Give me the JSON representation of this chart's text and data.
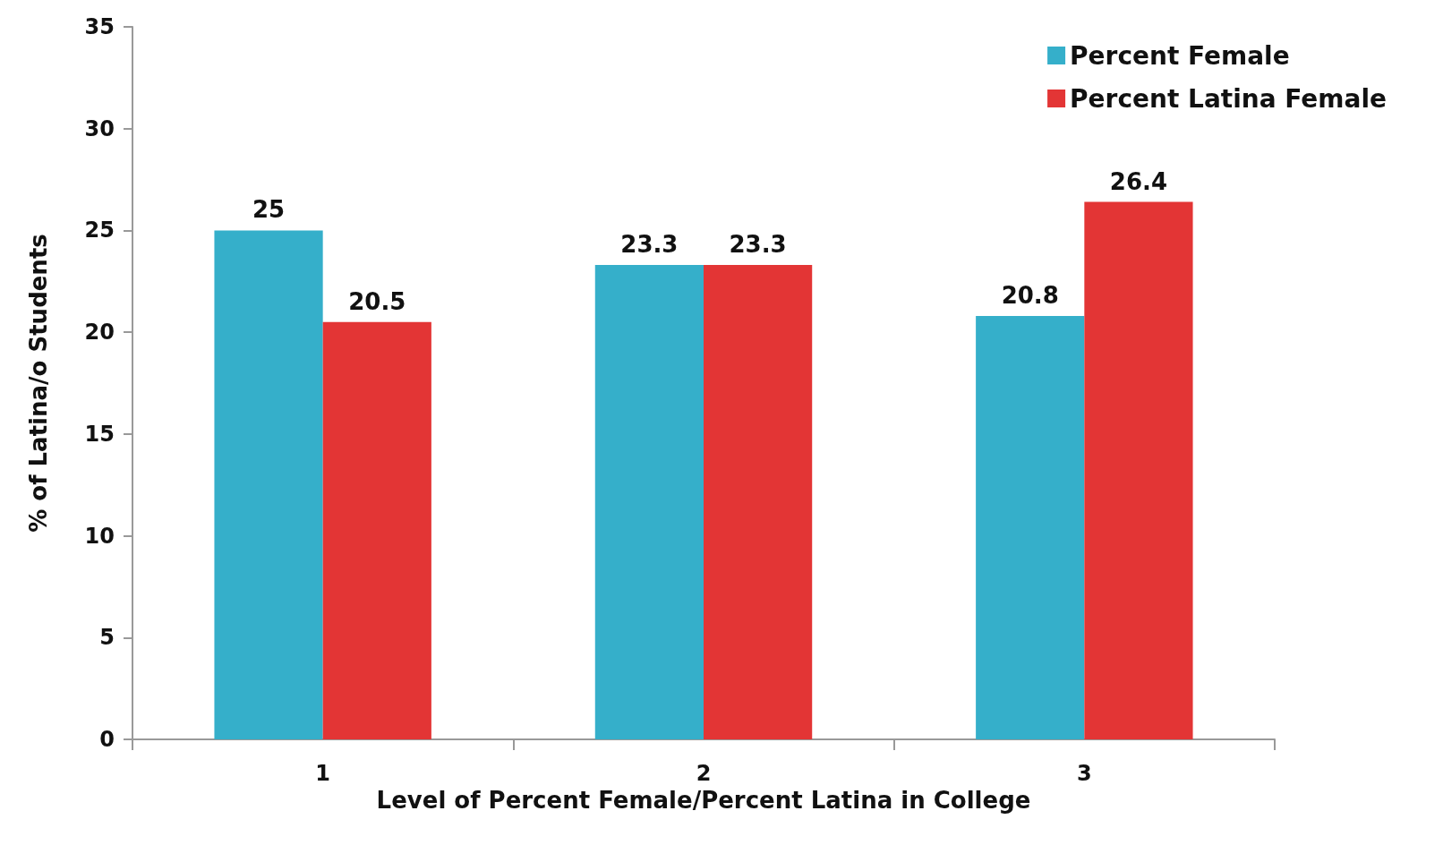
{
  "chart_data": {
    "type": "bar",
    "xlabel": "Level of Percent Female/Percent Latina in College",
    "ylabel": "% of Latina/o Students",
    "categories": [
      "1",
      "2",
      "3"
    ],
    "series": [
      {
        "name": "Percent Female",
        "color": "#35afca",
        "values": [
          25,
          23.3,
          20.8
        ]
      },
      {
        "name": "Percent Latina Female",
        "color": "#e33535",
        "values": [
          20.5,
          23.3,
          26.4
        ]
      }
    ],
    "ylim": [
      0,
      35
    ],
    "yticks": [
      0,
      5,
      10,
      15,
      20,
      25,
      30,
      35
    ],
    "grid": false,
    "legend": "top right",
    "data_labels": true
  }
}
